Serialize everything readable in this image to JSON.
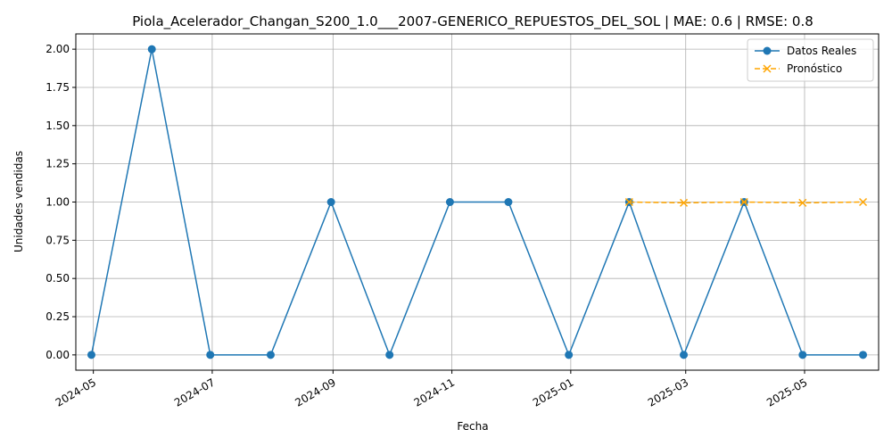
{
  "chart_data": {
    "type": "line",
    "title": "Piola_Acelerador_Changan_S200_1.0___2007-GENERICO_REPUESTOS_DEL_SOL | MAE: 0.6 | RMSE: 0.8",
    "xlabel": "Fecha",
    "ylabel": "Unidades vendidas",
    "x_ticks": [
      "2024-05",
      "2024-07",
      "2024-09",
      "2024-11",
      "2025-01",
      "2025-03",
      "2025-05"
    ],
    "y_ticks": [
      "0.00",
      "0.25",
      "0.50",
      "0.75",
      "1.00",
      "1.25",
      "1.50",
      "1.75",
      "2.00"
    ],
    "xlim": [
      "2024-04-22",
      "2025-06-08"
    ],
    "ylim": [
      -0.1,
      2.1
    ],
    "grid": true,
    "legend_position": "top-right",
    "series": [
      {
        "name": "Datos Reales",
        "color": "#1f77b4",
        "style": "solid",
        "marker": "circle",
        "x": [
          "2024-04-30",
          "2024-05-31",
          "2024-06-30",
          "2024-07-31",
          "2024-08-31",
          "2024-09-30",
          "2024-10-31",
          "2024-11-30",
          "2024-12-31",
          "2025-01-31",
          "2025-02-28",
          "2025-03-31",
          "2025-04-30",
          "2025-05-31"
        ],
        "values": [
          0,
          2,
          0,
          0,
          1,
          0,
          1,
          1,
          0,
          1,
          0,
          1,
          0,
          0
        ]
      },
      {
        "name": "Pronóstico",
        "color": "#ffa500",
        "style": "dashed",
        "marker": "x",
        "x": [
          "2025-01-31",
          "2025-02-28",
          "2025-03-31",
          "2025-04-30",
          "2025-05-31"
        ],
        "values": [
          1.0,
          0.995,
          1.0,
          0.995,
          1.0
        ]
      }
    ]
  }
}
